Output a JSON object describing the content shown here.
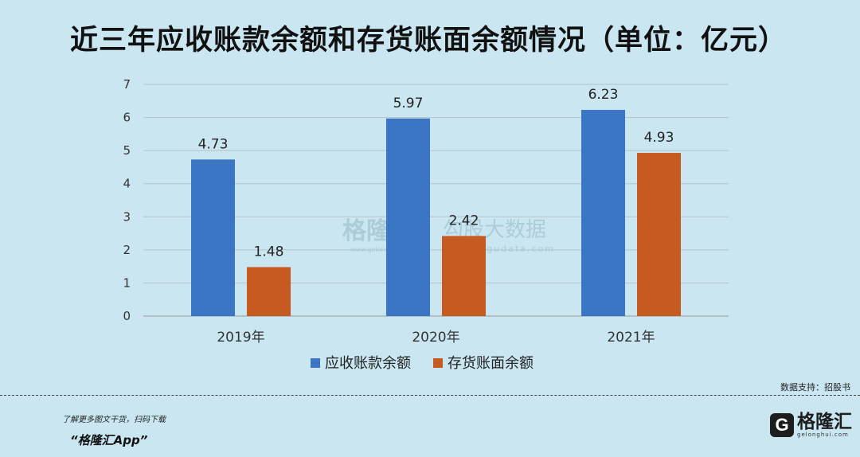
{
  "title": "近三年应收账款余额和存货账面余额情况（单位：亿元）",
  "chart_data": {
    "type": "bar",
    "title": "近三年应收账款余额和存货账面余额情况（单位：亿元）",
    "categories": [
      "2019年",
      "2020年",
      "2021年"
    ],
    "series": [
      {
        "name": "应收账款余额",
        "values": [
          4.73,
          5.97,
          6.23
        ],
        "color": "#3a76c4",
        "labels": [
          "4.73",
          "5.97",
          "6.23"
        ]
      },
      {
        "name": "存货账面余额",
        "values": [
          1.48,
          2.42,
          4.93
        ],
        "color": "#c65a21",
        "labels": [
          "1.48",
          "2.42",
          "4.93"
        ]
      }
    ],
    "ylim": [
      0,
      7
    ],
    "yticks": [
      0,
      1,
      2,
      3,
      4,
      5,
      6,
      7
    ],
    "grid": true,
    "legend": "bottom"
  },
  "watermarks": {
    "brand": "格隆汇",
    "brand_url": "www.gelonghui.com",
    "data_brand": "勾股大数据",
    "data_url": "www.gogudata.com"
  },
  "source": "数据支持：招股书",
  "footer": {
    "promo_line": "了解更多图文干货，扫码下载",
    "app_name": "“格隆汇App”",
    "logo_mark": "G",
    "logo_name": "格隆汇",
    "logo_url": "gelonghui.com"
  }
}
